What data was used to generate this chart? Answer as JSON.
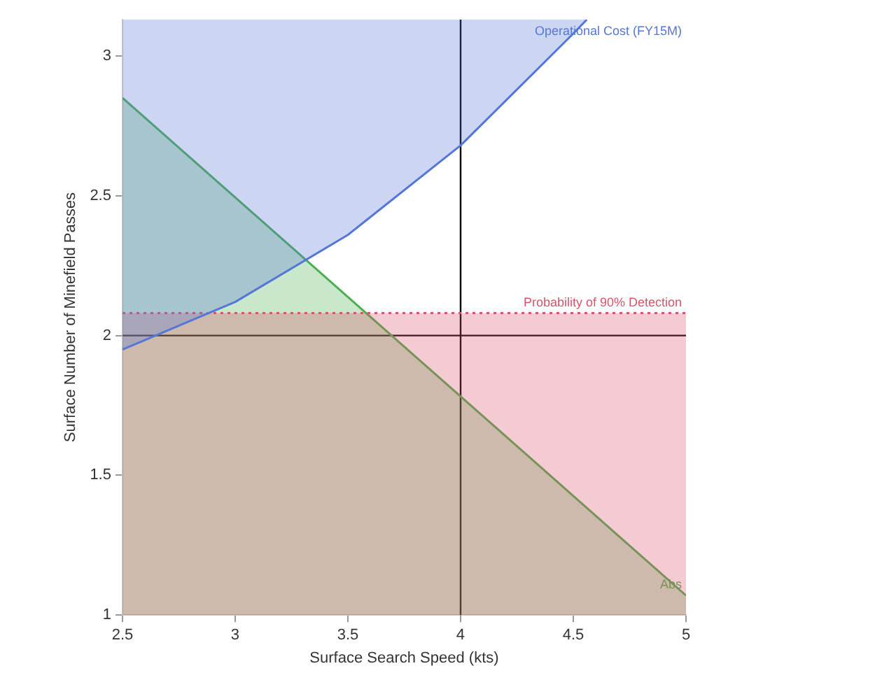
{
  "chart_data": {
    "type": "line",
    "xlabel": "Surface Search Speed (kts)",
    "ylabel": "Surface Number of Minefield Passes",
    "xlim": [
      2.5,
      5
    ],
    "xticks": [
      2.5,
      3,
      3.5,
      4,
      4.5,
      5
    ],
    "ylim": [
      1,
      3.13
    ],
    "yticks": [
      1,
      1.5,
      2,
      2.5,
      3
    ],
    "grid": false,
    "legend": false,
    "marker": "none",
    "series": [
      {
        "name": "Operational Cost (FY15M)",
        "color": "#5577d6",
        "x": [
          2.5,
          3,
          3.5,
          4,
          4.5,
          4.56
        ],
        "values": [
          1.95,
          2.12,
          2.36,
          2.68,
          3.08,
          3.13
        ],
        "lower": [
          1.95,
          2.12,
          2.36,
          2.68,
          3.08,
          3.13
        ],
        "upper": [
          3.13,
          3.13,
          3.13,
          3.13,
          3.13,
          3.13
        ]
      },
      {
        "name": "Probability of 90% Detection",
        "color": "#d9536b",
        "line_style": "dotted",
        "x": [
          2.5,
          5
        ],
        "values": [
          2.08,
          2.08
        ],
        "lower": [
          1,
          1
        ],
        "upper": [
          2.08,
          2.08
        ]
      },
      {
        "name": "Abs",
        "color": "#4caf50",
        "x": [
          2.5,
          5
        ],
        "values": [
          2.85,
          1.07
        ],
        "lower": [
          1,
          1
        ],
        "upper": [
          2.85,
          1.07
        ]
      }
    ],
    "ref_lines": [
      {
        "axis": "x",
        "value": 4,
        "color": "#000000"
      },
      {
        "axis": "y",
        "value": 2,
        "color": "#000000"
      }
    ]
  }
}
